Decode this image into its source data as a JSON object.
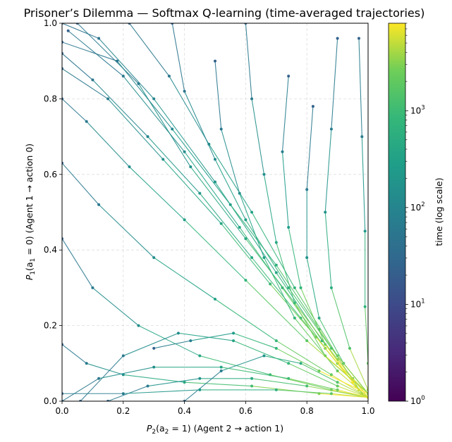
{
  "chart_data": {
    "type": "line",
    "title": "Prisoner’s Dilemma — Softmax Q-learning (time-averaged trajectories)",
    "xlabel": {
      "lead": "P",
      "sub1": "2",
      "paren_open": "(a",
      "sub2": "2",
      "rest": " = 1)  (Agent 2 → action 1)"
    },
    "ylabel": {
      "lead": "P",
      "sub1": "1",
      "paren_open": "(a",
      "sub2": "1",
      "rest": " = 0)  (Agent 1 → action 0)"
    },
    "xlim": [
      0,
      1
    ],
    "ylim": [
      0,
      1
    ],
    "x_ticks": [
      "0.0",
      "0.2",
      "0.4",
      "0.6",
      "0.8",
      "1.0"
    ],
    "y_ticks": [
      "0.0",
      "0.2",
      "0.4",
      "0.6",
      "0.8",
      "1.0"
    ],
    "grid": true,
    "colorbar": {
      "label": "time (log scale)",
      "scale": "log",
      "range": [
        1,
        8000
      ],
      "ticks": [
        {
          "value": 1,
          "base": "10",
          "exp": "0"
        },
        {
          "value": 10,
          "base": "10",
          "exp": "1"
        },
        {
          "value": 100,
          "base": "10",
          "exp": "2"
        },
        {
          "value": 1000,
          "base": "10",
          "exp": "3"
        }
      ],
      "colormap": "viridis"
    },
    "converge_point": [
      1.0,
      0.0
    ],
    "series": [
      {
        "points": [
          [
            0.0,
            1.0
          ],
          [
            0.12,
            0.96
          ],
          [
            0.3,
            0.8
          ],
          [
            0.5,
            0.58
          ],
          [
            0.7,
            0.34
          ],
          [
            0.85,
            0.16
          ],
          [
            0.95,
            0.06
          ],
          [
            1.0,
            0.01
          ]
        ]
      },
      {
        "points": [
          [
            0.0,
            0.92
          ],
          [
            0.1,
            0.85
          ],
          [
            0.28,
            0.7
          ],
          [
            0.45,
            0.55
          ],
          [
            0.62,
            0.38
          ],
          [
            0.78,
            0.22
          ],
          [
            0.9,
            0.1
          ],
          [
            1.0,
            0.02
          ]
        ]
      },
      {
        "points": [
          [
            0.02,
            0.98
          ],
          [
            0.2,
            0.86
          ],
          [
            0.4,
            0.66
          ],
          [
            0.58,
            0.46
          ],
          [
            0.72,
            0.3
          ],
          [
            0.86,
            0.14
          ],
          [
            0.97,
            0.03
          ]
        ]
      },
      {
        "points": [
          [
            0.0,
            0.88
          ],
          [
            0.15,
            0.8
          ],
          [
            0.33,
            0.64
          ],
          [
            0.52,
            0.47
          ],
          [
            0.68,
            0.31
          ],
          [
            0.83,
            0.17
          ],
          [
            0.96,
            0.04
          ]
        ]
      },
      {
        "points": [
          [
            0.05,
            1.0
          ],
          [
            0.25,
            0.84
          ],
          [
            0.42,
            0.62
          ],
          [
            0.6,
            0.43
          ],
          [
            0.76,
            0.26
          ],
          [
            0.9,
            0.11
          ],
          [
            1.0,
            0.01
          ]
        ]
      },
      {
        "points": [
          [
            0.0,
            0.95
          ],
          [
            0.18,
            0.9
          ],
          [
            0.36,
            0.72
          ],
          [
            0.55,
            0.52
          ],
          [
            0.7,
            0.36
          ],
          [
            0.84,
            0.19
          ],
          [
            0.98,
            0.02
          ]
        ]
      },
      {
        "points": [
          [
            0.22,
            1.0
          ],
          [
            0.35,
            0.86
          ],
          [
            0.48,
            0.68
          ],
          [
            0.62,
            0.5
          ],
          [
            0.76,
            0.3
          ],
          [
            0.9,
            0.12
          ],
          [
            1.0,
            0.02
          ]
        ]
      },
      {
        "points": [
          [
            0.0,
            0.63
          ],
          [
            0.12,
            0.52
          ],
          [
            0.3,
            0.38
          ],
          [
            0.5,
            0.27
          ],
          [
            0.7,
            0.16
          ],
          [
            0.88,
            0.07
          ],
          [
            1.0,
            0.01
          ]
        ]
      },
      {
        "points": [
          [
            0.0,
            0.43
          ],
          [
            0.1,
            0.3
          ],
          [
            0.25,
            0.2
          ],
          [
            0.45,
            0.12
          ],
          [
            0.68,
            0.07
          ],
          [
            0.88,
            0.03
          ],
          [
            1.0,
            0.01
          ]
        ]
      },
      {
        "points": [
          [
            0.0,
            0.15
          ],
          [
            0.08,
            0.1
          ],
          [
            0.2,
            0.07
          ],
          [
            0.4,
            0.05
          ],
          [
            0.62,
            0.04
          ],
          [
            0.84,
            0.02
          ],
          [
            1.0,
            0.01
          ]
        ]
      },
      {
        "points": [
          [
            0.15,
            0.0
          ],
          [
            0.28,
            0.04
          ],
          [
            0.45,
            0.06
          ],
          [
            0.62,
            0.06
          ],
          [
            0.8,
            0.04
          ],
          [
            1.0,
            0.01
          ]
        ]
      },
      {
        "points": [
          [
            0.4,
            0.0
          ],
          [
            0.52,
            0.08
          ],
          [
            0.66,
            0.12
          ],
          [
            0.78,
            0.1
          ],
          [
            0.9,
            0.05
          ],
          [
            1.0,
            0.01
          ]
        ]
      },
      {
        "points": [
          [
            0.06,
            0.0
          ],
          [
            0.2,
            0.12
          ],
          [
            0.38,
            0.18
          ],
          [
            0.56,
            0.16
          ],
          [
            0.74,
            0.1
          ],
          [
            0.9,
            0.04
          ],
          [
            1.0,
            0.01
          ]
        ]
      },
      {
        "points": [
          [
            0.6,
            1.0
          ],
          [
            0.62,
            0.8
          ],
          [
            0.66,
            0.6
          ],
          [
            0.7,
            0.42
          ],
          [
            0.76,
            0.26
          ],
          [
            0.86,
            0.12
          ],
          [
            1.0,
            0.02
          ]
        ]
      },
      {
        "points": [
          [
            0.74,
            0.86
          ],
          [
            0.72,
            0.66
          ],
          [
            0.74,
            0.46
          ],
          [
            0.78,
            0.3
          ],
          [
            0.86,
            0.15
          ],
          [
            0.95,
            0.05
          ]
        ]
      },
      {
        "points": [
          [
            0.82,
            0.78
          ],
          [
            0.8,
            0.56
          ],
          [
            0.8,
            0.38
          ],
          [
            0.84,
            0.22
          ],
          [
            0.92,
            0.1
          ],
          [
            1.0,
            0.02
          ]
        ]
      },
      {
        "points": [
          [
            0.9,
            0.96
          ],
          [
            0.88,
            0.72
          ],
          [
            0.86,
            0.5
          ],
          [
            0.88,
            0.3
          ],
          [
            0.94,
            0.14
          ],
          [
            1.0,
            0.03
          ]
        ]
      },
      {
        "points": [
          [
            0.5,
            0.9
          ],
          [
            0.52,
            0.72
          ],
          [
            0.58,
            0.55
          ],
          [
            0.66,
            0.38
          ],
          [
            0.76,
            0.22
          ],
          [
            0.9,
            0.08
          ],
          [
            1.0,
            0.01
          ]
        ]
      },
      {
        "points": [
          [
            0.97,
            0.96
          ],
          [
            0.98,
            0.7
          ],
          [
            0.99,
            0.45
          ],
          [
            0.99,
            0.25
          ],
          [
            1.0,
            0.1
          ],
          [
            1.0,
            0.02
          ]
        ]
      },
      {
        "points": [
          [
            0.3,
            0.14
          ],
          [
            0.42,
            0.16
          ],
          [
            0.56,
            0.18
          ],
          [
            0.7,
            0.14
          ],
          [
            0.84,
            0.08
          ],
          [
            1.0,
            0.02
          ]
        ]
      },
      {
        "points": [
          [
            0.36,
            1.0
          ],
          [
            0.4,
            0.82
          ],
          [
            0.5,
            0.64
          ],
          [
            0.6,
            0.48
          ],
          [
            0.74,
            0.3
          ],
          [
            0.88,
            0.14
          ],
          [
            1.0,
            0.02
          ]
        ]
      },
      {
        "points": [
          [
            0.0,
            0.8
          ],
          [
            0.08,
            0.74
          ],
          [
            0.22,
            0.62
          ],
          [
            0.4,
            0.48
          ],
          [
            0.6,
            0.32
          ],
          [
            0.8,
            0.16
          ],
          [
            1.0,
            0.02
          ]
        ]
      },
      {
        "points": [
          [
            0.0,
            0.02
          ],
          [
            0.2,
            0.02
          ],
          [
            0.45,
            0.03
          ],
          [
            0.7,
            0.03
          ],
          [
            0.88,
            0.02
          ],
          [
            1.0,
            0.01
          ]
        ]
      },
      {
        "points": [
          [
            0.0,
            0.0
          ],
          [
            0.12,
            0.06
          ],
          [
            0.3,
            0.09
          ],
          [
            0.52,
            0.09
          ],
          [
            0.74,
            0.06
          ],
          [
            0.9,
            0.03
          ],
          [
            1.0,
            0.01
          ]
        ]
      }
    ]
  }
}
